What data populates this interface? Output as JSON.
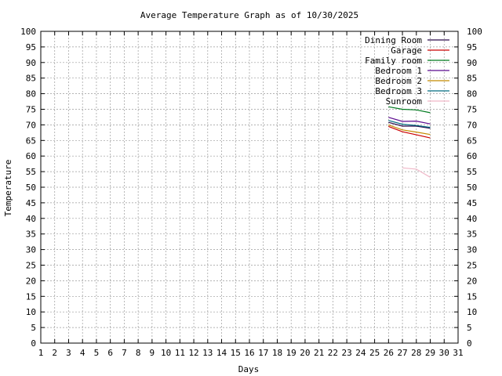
{
  "chart_data": {
    "type": "line",
    "title": "Average Temperature Graph as of 10/30/2025",
    "xlabel": "Days",
    "ylabel": "Temperature",
    "xlim": [
      1,
      31
    ],
    "ylim": [
      0,
      100
    ],
    "x_ticks": [
      1,
      2,
      3,
      4,
      5,
      6,
      7,
      8,
      9,
      10,
      11,
      12,
      13,
      14,
      15,
      16,
      17,
      18,
      19,
      20,
      21,
      22,
      23,
      24,
      25,
      26,
      27,
      28,
      29,
      30,
      31
    ],
    "y_ticks": [
      0,
      5,
      10,
      15,
      20,
      25,
      30,
      35,
      40,
      45,
      50,
      55,
      60,
      65,
      70,
      75,
      80,
      85,
      90,
      95,
      100
    ],
    "grid": true,
    "legend_position": "top-right",
    "series": [
      {
        "name": "Dining Room",
        "color": "#2a0a4a",
        "x": [
          26,
          27,
          28,
          29
        ],
        "y": [
          70.8,
          69.6,
          69.6,
          68.9
        ]
      },
      {
        "name": "Garage",
        "color": "#cc0000",
        "x": [
          26,
          27,
          28,
          29
        ],
        "y": [
          69.5,
          67.8,
          66.8,
          65.8
        ]
      },
      {
        "name": "Family room",
        "color": "#007a1f",
        "x": [
          26,
          27,
          28,
          29
        ],
        "y": [
          75.8,
          75.0,
          74.8,
          73.9
        ]
      },
      {
        "name": "Bedroom 1",
        "color": "#5b0a8f",
        "x": [
          26,
          27,
          28,
          29
        ],
        "y": [
          72.4,
          71.1,
          71.2,
          70.3
        ]
      },
      {
        "name": "Bedroom 2",
        "color": "#c48a00",
        "x": [
          26,
          27,
          28,
          29
        ],
        "y": [
          70.0,
          68.4,
          67.7,
          66.9
        ]
      },
      {
        "name": "Bedroom 3",
        "color": "#006c80",
        "x": [
          26,
          27,
          28,
          29
        ],
        "y": [
          71.4,
          70.2,
          69.8,
          69.2
        ]
      },
      {
        "name": "Sunroom",
        "color": "#f0b8c8",
        "x": [
          27,
          28,
          29
        ],
        "y": [
          56.2,
          55.8,
          53.2
        ]
      }
    ]
  }
}
